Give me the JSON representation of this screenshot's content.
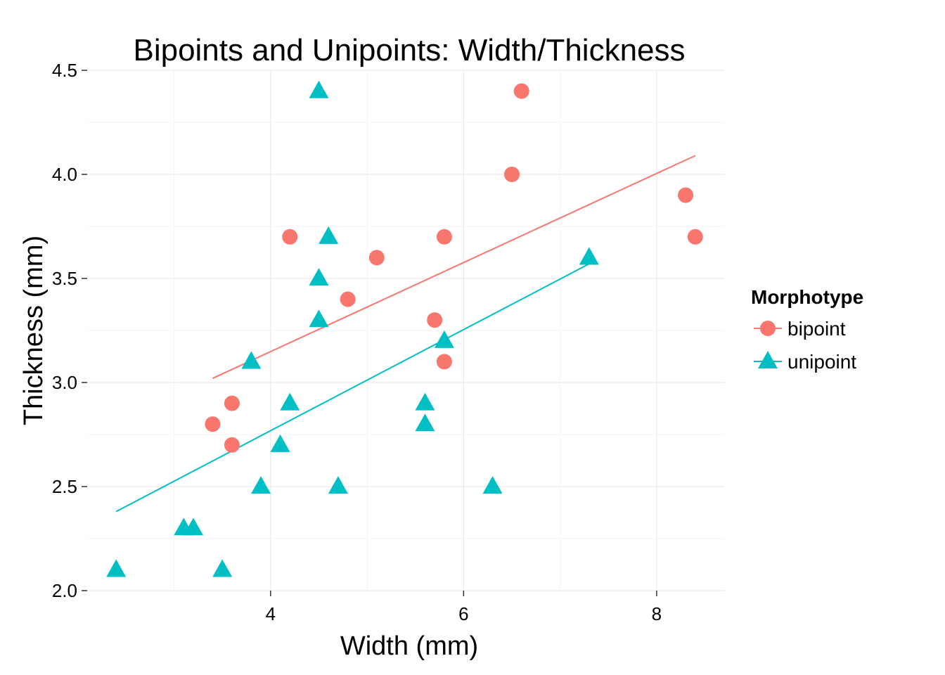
{
  "chart_data": {
    "type": "scatter",
    "title": "Bipoints and Unipoints: Width/Thickness",
    "xlabel": "Width (mm)",
    "ylabel": "Thickness (mm)",
    "xlim": [
      2.1,
      8.7
    ],
    "ylim": [
      2.0,
      4.5
    ],
    "x_ticks": [
      {
        "value": 4,
        "label": "4"
      },
      {
        "value": 6,
        "label": "6"
      },
      {
        "value": 8,
        "label": "8"
      }
    ],
    "y_ticks": [
      {
        "value": 2.0,
        "label": "2.0"
      },
      {
        "value": 2.5,
        "label": "2.5"
      },
      {
        "value": 3.0,
        "label": "3.0"
      },
      {
        "value": 3.5,
        "label": "3.5"
      },
      {
        "value": 4.0,
        "label": "4.0"
      },
      {
        "value": 4.5,
        "label": "4.5"
      }
    ],
    "grid": true,
    "legend": {
      "title": "Morphotype",
      "position": "right"
    },
    "series": [
      {
        "name": "bipoint",
        "color": "#F8766D",
        "marker": "circle",
        "points": [
          {
            "x": 3.4,
            "y": 2.8
          },
          {
            "x": 3.6,
            "y": 2.9
          },
          {
            "x": 3.6,
            "y": 2.7
          },
          {
            "x": 4.2,
            "y": 3.7
          },
          {
            "x": 4.8,
            "y": 3.4
          },
          {
            "x": 5.1,
            "y": 3.6
          },
          {
            "x": 5.7,
            "y": 3.3
          },
          {
            "x": 5.8,
            "y": 3.7
          },
          {
            "x": 5.8,
            "y": 3.1
          },
          {
            "x": 6.5,
            "y": 4.0
          },
          {
            "x": 6.6,
            "y": 4.4
          },
          {
            "x": 8.3,
            "y": 3.9
          },
          {
            "x": 8.4,
            "y": 3.7
          }
        ],
        "fit_line": [
          {
            "x": 3.4,
            "y": 3.02
          },
          {
            "x": 8.4,
            "y": 4.09
          }
        ]
      },
      {
        "name": "unipoint",
        "color": "#00BFC4",
        "marker": "triangle",
        "points": [
          {
            "x": 2.4,
            "y": 2.1
          },
          {
            "x": 3.1,
            "y": 2.3
          },
          {
            "x": 3.2,
            "y": 2.3
          },
          {
            "x": 3.5,
            "y": 2.1
          },
          {
            "x": 3.8,
            "y": 3.1
          },
          {
            "x": 3.9,
            "y": 2.5
          },
          {
            "x": 4.1,
            "y": 2.7
          },
          {
            "x": 4.2,
            "y": 2.9
          },
          {
            "x": 4.5,
            "y": 4.4
          },
          {
            "x": 4.5,
            "y": 3.5
          },
          {
            "x": 4.5,
            "y": 3.3
          },
          {
            "x": 4.6,
            "y": 3.7
          },
          {
            "x": 4.7,
            "y": 2.5
          },
          {
            "x": 5.6,
            "y": 2.9
          },
          {
            "x": 5.6,
            "y": 2.8
          },
          {
            "x": 5.8,
            "y": 3.2
          },
          {
            "x": 6.3,
            "y": 2.5
          },
          {
            "x": 7.3,
            "y": 3.6
          }
        ],
        "fit_line": [
          {
            "x": 2.4,
            "y": 2.38
          },
          {
            "x": 7.3,
            "y": 3.57
          }
        ]
      }
    ]
  }
}
